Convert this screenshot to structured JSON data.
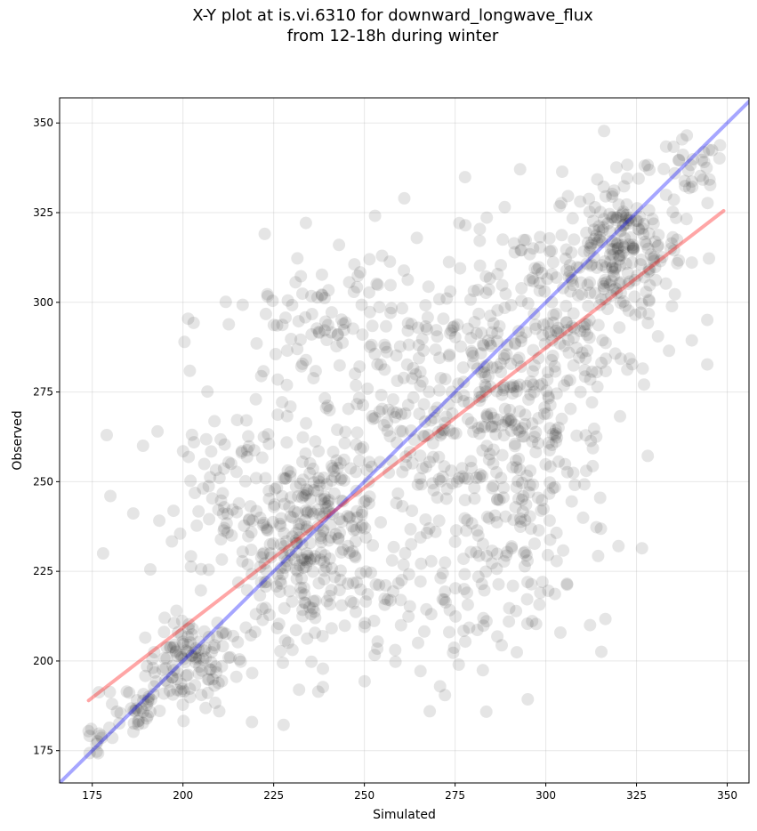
{
  "chart_data": {
    "type": "scatter",
    "title_line1": "X-Y plot at is.vi.6310 for downward_longwave_flux",
    "title_line2": "from 12-18h during winter",
    "xlabel": "Simulated",
    "ylabel": "Observed",
    "xlim": [
      166,
      356
    ],
    "ylim": [
      166,
      357
    ],
    "xticks": [
      175,
      200,
      225,
      250,
      275,
      300,
      325,
      350
    ],
    "yticks": [
      175,
      200,
      225,
      250,
      275,
      300,
      325,
      350
    ],
    "grid": true,
    "points_color": "#000000",
    "points_alpha": 0.1,
    "series": [
      {
        "kind": "identity_line",
        "color": "#0000ff",
        "x": [
          166,
          356
        ],
        "y": [
          166,
          356
        ]
      },
      {
        "kind": "fit_line",
        "color": "#ff0000",
        "x": [
          174,
          349
        ],
        "y": [
          189,
          325.5
        ]
      }
    ],
    "clusters": [
      {
        "cx": 202,
        "cy": 199,
        "sx": 6,
        "sy": 6,
        "n": 110
      },
      {
        "cx": 186,
        "cy": 187,
        "sx": 4,
        "sy": 4,
        "n": 35
      },
      {
        "cx": 177,
        "cy": 178,
        "sx": 3,
        "sy": 3,
        "n": 12
      },
      {
        "cx": 320,
        "cy": 315,
        "sx": 9,
        "sy": 10,
        "n": 220
      },
      {
        "cx": 340,
        "cy": 336,
        "sx": 5,
        "sy": 5,
        "n": 30
      },
      {
        "cx": 240,
        "cy": 240,
        "sx": 8,
        "sy": 10,
        "n": 120
      },
      {
        "cx": 230,
        "cy": 225,
        "sx": 12,
        "sy": 15,
        "n": 150
      },
      {
        "cx": 265,
        "cy": 270,
        "sx": 20,
        "sy": 22,
        "n": 260
      },
      {
        "cx": 290,
        "cy": 255,
        "sx": 14,
        "sy": 22,
        "n": 200
      },
      {
        "cx": 215,
        "cy": 245,
        "sx": 12,
        "sy": 16,
        "n": 90
      },
      {
        "cx": 240,
        "cy": 295,
        "sx": 15,
        "sy": 10,
        "n": 70
      },
      {
        "cx": 300,
        "cy": 290,
        "sx": 15,
        "sy": 18,
        "n": 180
      },
      {
        "cx": 265,
        "cy": 215,
        "sx": 18,
        "sy": 12,
        "n": 90
      }
    ],
    "outliers": [
      [
        179,
        263
      ],
      [
        180,
        246
      ],
      [
        178,
        230
      ],
      [
        189,
        260
      ],
      [
        193,
        264
      ],
      [
        243,
        316
      ],
      [
        261,
        329
      ],
      [
        268,
        186
      ],
      [
        276,
        199
      ],
      [
        232,
        192
      ],
      [
        219,
        183
      ],
      [
        210,
        186
      ]
    ]
  }
}
